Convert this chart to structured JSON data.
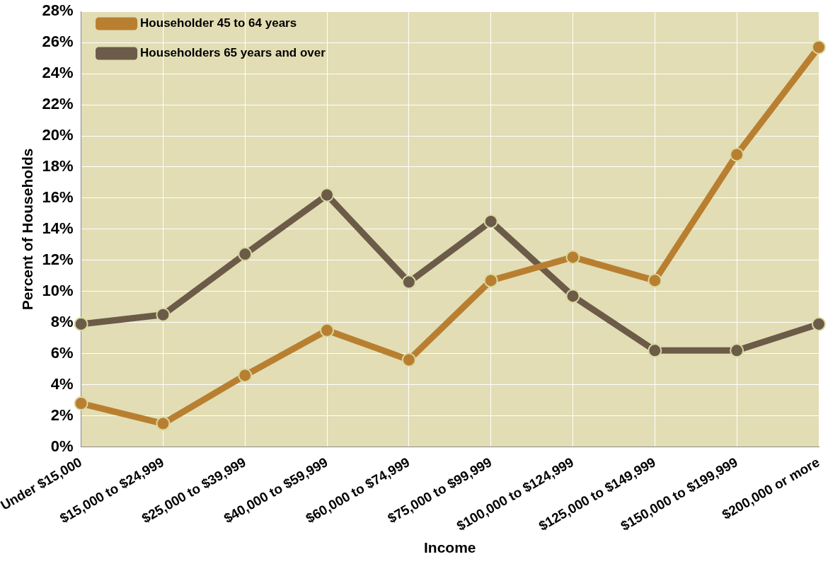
{
  "chart_data": {
    "type": "line",
    "xlabel": "Income",
    "ylabel": "Percent of Households",
    "categories": [
      "Under $15,000",
      "$15,000 to $24,999",
      "$25,000 to $39,999",
      "$40,000 to $59,999",
      "$60,000 to $74,999",
      "$75,000 to $99,999",
      "$100,000 to $124,999",
      "$125,000 to $149,999",
      "$150,000 to $199,999",
      "$200,000 or more"
    ],
    "series": [
      {
        "name": "Householder 45 to 64 years",
        "color": "#b97f30",
        "values": [
          2.8,
          1.5,
          4.6,
          7.5,
          5.6,
          10.7,
          12.2,
          10.7,
          18.8,
          25.7
        ]
      },
      {
        "name": "Householders 65 years and over",
        "color": "#6b5b48",
        "values": [
          7.9,
          8.5,
          12.4,
          16.2,
          10.6,
          14.5,
          9.7,
          6.2,
          6.2,
          7.9
        ]
      }
    ],
    "ylim": [
      0,
      28
    ],
    "yticks": [
      {
        "value": 0,
        "label": "0%"
      },
      {
        "value": 2,
        "label": "2%"
      },
      {
        "value": 4,
        "label": "4%"
      },
      {
        "value": 6,
        "label": "6%"
      },
      {
        "value": 8,
        "label": "8%"
      },
      {
        "value": 10,
        "label": "10%"
      },
      {
        "value": 12,
        "label": "12%"
      },
      {
        "value": 14,
        "label": "14%"
      },
      {
        "value": 16,
        "label": "16%"
      },
      {
        "value": 18,
        "label": "18%"
      },
      {
        "value": 20,
        "label": "20%"
      },
      {
        "value": 22,
        "label": "22%"
      },
      {
        "value": 24,
        "label": "24%"
      },
      {
        "value": 26,
        "label": "26%"
      },
      {
        "value": 28,
        "label": "28%"
      }
    ],
    "grid": true,
    "legend": "top left",
    "marker": "circle",
    "line_style": "solid"
  }
}
